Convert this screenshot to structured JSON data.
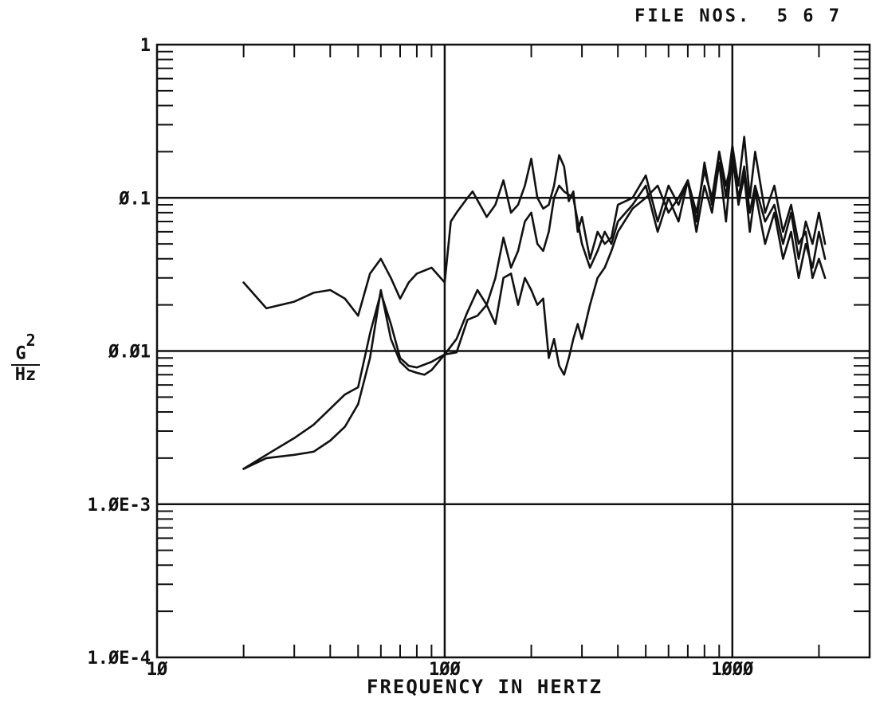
{
  "header": {
    "file_label": "FILE NOS.  5 6 7"
  },
  "chart_data": {
    "type": "line",
    "title": "",
    "xlabel": "FREQUENCY IN HERTZ",
    "ylabel": {
      "numerator": "G",
      "exponent": "2",
      "denominator": "Hz"
    },
    "x_scale": "log",
    "y_scale": "log",
    "xlim": [
      10,
      3000
    ],
    "ylim": [
      0.0001,
      1
    ],
    "grid": true,
    "x_ticklabels": [
      {
        "value": 10,
        "label": "10"
      },
      {
        "value": 100,
        "label": "100"
      },
      {
        "value": 1000,
        "label": "1000"
      }
    ],
    "y_ticklabels": [
      {
        "value": 1,
        "label": "1"
      },
      {
        "value": 0.1,
        "label": "0.1"
      },
      {
        "value": 0.01,
        "label": "0.01"
      },
      {
        "value": 0.001,
        "label": "1.0E-3"
      },
      {
        "value": 0.0001,
        "label": "1.0E-4"
      }
    ],
    "series": [
      {
        "x": [
          20,
          24,
          30,
          35,
          40,
          45,
          50,
          55,
          60,
          65,
          70,
          75,
          80,
          90,
          100,
          105,
          110,
          120,
          125,
          135,
          140,
          150,
          160,
          170,
          180,
          190,
          200,
          210,
          220,
          230,
          240,
          250,
          260,
          270,
          280,
          290,
          300,
          320,
          340,
          360,
          380,
          400,
          450,
          500,
          550,
          600,
          650,
          700,
          750,
          800,
          850,
          900,
          950,
          1000,
          1050,
          1100,
          1150,
          1200,
          1300,
          1400,
          1500,
          1600,
          1700,
          1800,
          1900,
          2000,
          2100
        ],
        "y": [
          0.028,
          0.019,
          0.021,
          0.024,
          0.025,
          0.022,
          0.017,
          0.032,
          0.04,
          0.03,
          0.022,
          0.028,
          0.032,
          0.035,
          0.028,
          0.07,
          0.08,
          0.1,
          0.11,
          0.085,
          0.075,
          0.09,
          0.13,
          0.08,
          0.09,
          0.12,
          0.18,
          0.1,
          0.085,
          0.09,
          0.12,
          0.19,
          0.16,
          0.095,
          0.11,
          0.06,
          0.075,
          0.04,
          0.06,
          0.05,
          0.055,
          0.09,
          0.1,
          0.14,
          0.07,
          0.12,
          0.09,
          0.13,
          0.08,
          0.15,
          0.1,
          0.2,
          0.12,
          0.18,
          0.1,
          0.16,
          0.08,
          0.12,
          0.07,
          0.09,
          0.05,
          0.08,
          0.04,
          0.07,
          0.05,
          0.08,
          0.05
        ]
      },
      {
        "x": [
          20,
          24,
          30,
          35,
          40,
          45,
          50,
          55,
          60,
          65,
          70,
          75,
          80,
          90,
          100,
          110,
          120,
          130,
          140,
          150,
          160,
          170,
          180,
          190,
          200,
          210,
          220,
          230,
          240,
          250,
          260,
          280,
          300,
          320,
          340,
          360,
          380,
          400,
          450,
          500,
          550,
          600,
          650,
          700,
          750,
          800,
          850,
          900,
          950,
          1000,
          1050,
          1100,
          1150,
          1200,
          1300,
          1400,
          1500,
          1600,
          1700,
          1800,
          1900,
          2000,
          2100
        ],
        "y": [
          0.0017,
          0.0021,
          0.0027,
          0.0033,
          0.0042,
          0.0052,
          0.0058,
          0.013,
          0.024,
          0.015,
          0.009,
          0.008,
          0.0078,
          0.0085,
          0.0095,
          0.012,
          0.018,
          0.025,
          0.02,
          0.03,
          0.055,
          0.035,
          0.045,
          0.07,
          0.08,
          0.05,
          0.045,
          0.06,
          0.1,
          0.12,
          0.11,
          0.1,
          0.05,
          0.035,
          0.045,
          0.06,
          0.05,
          0.07,
          0.09,
          0.12,
          0.06,
          0.1,
          0.07,
          0.13,
          0.06,
          0.12,
          0.08,
          0.17,
          0.07,
          0.2,
          0.09,
          0.14,
          0.06,
          0.11,
          0.05,
          0.08,
          0.04,
          0.06,
          0.03,
          0.05,
          0.035,
          0.06,
          0.04
        ]
      },
      {
        "x": [
          20,
          24,
          30,
          35,
          40,
          45,
          50,
          55,
          60,
          65,
          70,
          75,
          80,
          85,
          90,
          100,
          110,
          120,
          130,
          140,
          150,
          160,
          170,
          180,
          190,
          200,
          210,
          220,
          230,
          240,
          250,
          260,
          270,
          280,
          290,
          300,
          320,
          340,
          360,
          380,
          400,
          450,
          500,
          550,
          600,
          650,
          700,
          750,
          800,
          850,
          900,
          950,
          1000,
          1050,
          1100,
          1150,
          1200,
          1300,
          1400,
          1500,
          1600,
          1700,
          1800,
          1900,
          2000,
          2100
        ],
        "y": [
          0.0017,
          0.002,
          0.0021,
          0.0022,
          0.0026,
          0.0032,
          0.0045,
          0.009,
          0.025,
          0.012,
          0.0085,
          0.0075,
          0.0072,
          0.007,
          0.0075,
          0.0095,
          0.0098,
          0.016,
          0.017,
          0.02,
          0.015,
          0.03,
          0.032,
          0.02,
          0.03,
          0.025,
          0.02,
          0.022,
          0.009,
          0.012,
          0.008,
          0.007,
          0.009,
          0.012,
          0.015,
          0.012,
          0.02,
          0.03,
          0.035,
          0.045,
          0.06,
          0.085,
          0.1,
          0.12,
          0.08,
          0.1,
          0.13,
          0.07,
          0.17,
          0.09,
          0.2,
          0.1,
          0.22,
          0.12,
          0.25,
          0.1,
          0.2,
          0.08,
          0.12,
          0.06,
          0.09,
          0.05,
          0.06,
          0.03,
          0.04,
          0.03
        ]
      }
    ]
  }
}
